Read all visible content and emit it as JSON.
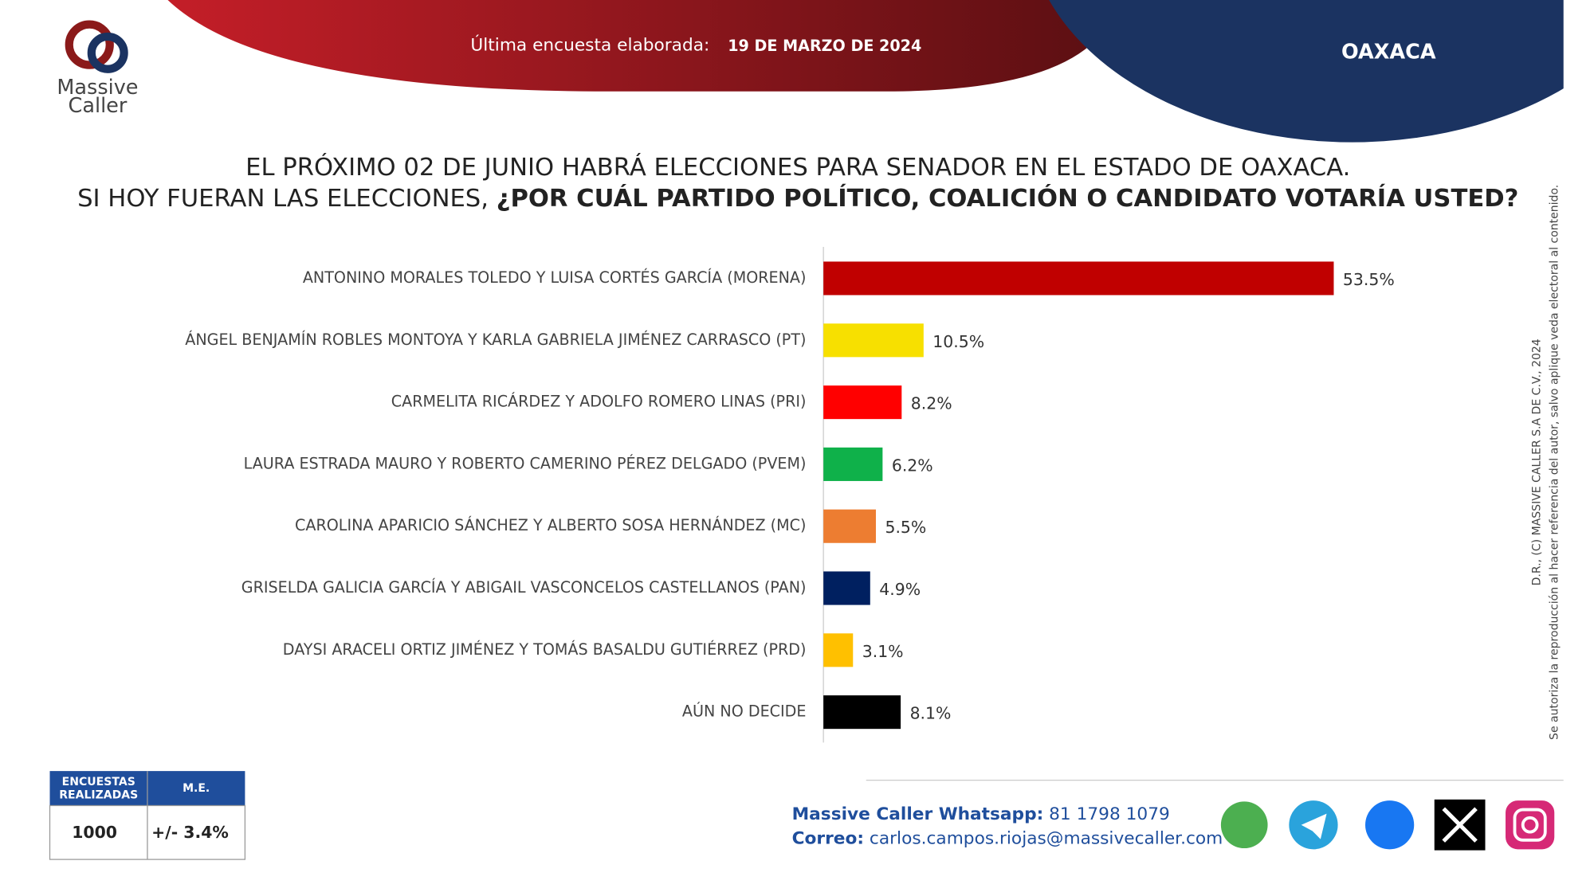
{
  "header": {
    "logo_line1": "Massive",
    "logo_line2": "Caller",
    "survey_label": "Última encuesta elaborada:",
    "survey_date": "19 DE MARZO DE 2024",
    "state": "OAXACA"
  },
  "title_line1": "EL PRÓXIMO 02 DE JUNIO HABRÁ ELECCIONES PARA SENADOR EN EL ESTADO DE OAXACA.",
  "title_line2_regular": "SI HOY FUERAN LAS ELECCIONES,",
  "title_line2_bold": "¿POR CUÁL PARTIDO POLÍTICO, COALICIÓN O CANDIDATO VOTARÍA USTED?",
  "chart_data": {
    "type": "hbar",
    "categories": [
      "ANTONINO MORALES TOLEDO Y LUISA CORTÉS GARCÍA (MORENA)",
      "ÁNGEL BENJAMÍN ROBLES MONTOYA Y KARLA GABRIELA JIMÉNEZ CARRASCO (PT)",
      "CARMELITA RICÁRDEZ Y ADOLFO ROMERO LINAS (PRI)",
      "LAURA ESTRADA MAURO Y ROBERTO CAMERINO PÉREZ DELGADO (PVEM)",
      "CAROLINA APARICIO SÁNCHEZ Y ALBERTO SOSA HERNÁNDEZ (MC)",
      "GRISELDA GALICIA GARCÍA Y ABIGAIL VASCONCELOS CASTELLANOS (PAN)",
      "DAYSI ARACELI ORTIZ JIMÉNEZ Y TOMÁS BASALDU GUTIÉRREZ (PRD)",
      "AÚN NO DECIDE"
    ],
    "values": [
      53.5,
      10.5,
      8.2,
      6.2,
      5.5,
      4.9,
      3.1,
      8.1
    ],
    "value_labels": [
      "53.5%",
      "10.5%",
      "8.2%",
      "6.2%",
      "5.5%",
      "4.9%",
      "3.1%",
      "8.1%"
    ],
    "colors": [
      "#c00000",
      "#f7e000",
      "#ff0000",
      "#0fb14a",
      "#ed7d31",
      "#002060",
      "#ffc000",
      "#000000"
    ]
  },
  "copyright": {
    "line1": "D.R., (C) MASSIVE CALLER S.A DE C.V., 2024",
    "line2": "Se autoriza la reproducción al hacer referencia del autor, salvo aplique veda electoral al contenido."
  },
  "table": {
    "headers": [
      "ENCUESTAS REALIZADAS",
      "M.E."
    ],
    "rows": [
      [
        "1000",
        "+/- 3.4%"
      ]
    ]
  },
  "footer": {
    "whatsapp_label": "Massive Caller Whatsapp:",
    "whatsapp": "81 1798 1079",
    "email_label": "Correo:",
    "email": "carlos.campos.riojas@massivecaller.com"
  }
}
